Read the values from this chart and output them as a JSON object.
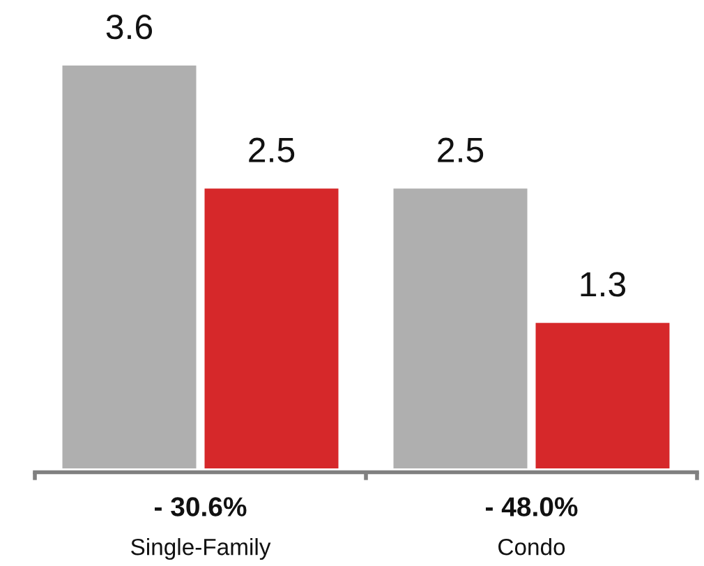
{
  "chart_data": {
    "type": "bar",
    "categories": [
      "Single-Family",
      "Condo"
    ],
    "series": [
      {
        "color": "#afafaf",
        "values": [
          3.6,
          2.5
        ]
      },
      {
        "color": "#d6282a",
        "values": [
          2.5,
          1.3
        ]
      }
    ],
    "data_labels": true,
    "annotations": [
      "- 30.6%",
      "- 48.0%"
    ]
  }
}
